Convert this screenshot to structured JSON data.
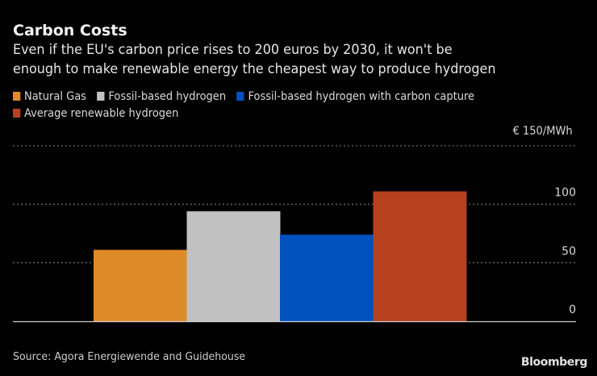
{
  "chart_data": {
    "type": "bar",
    "title": "Carbon Costs",
    "subtitle": "Even if the EU's carbon price rises to 200 euros by 2030, it won't be enough to make renewable energy the cheapest way to produce hydrogen",
    "subtitle_lines": [
      "Even if the EU's carbon price rises to 200 euros by 2030, it won't be",
      "enough to make renewable energy the cheapest way to produce hydrogen"
    ],
    "categories": [
      "Natural Gas",
      "Fossil-based hydrogen",
      "Fossil-based hydrogen with carbon capture",
      "Average renewable hydrogen"
    ],
    "values": [
      61,
      94,
      74,
      111
    ],
    "colors": [
      "#de8b27",
      "#c1c1c1",
      "#0051bd",
      "#b5411e"
    ],
    "legend": [
      {
        "label": "Natural Gas",
        "color": "#de8b27"
      },
      {
        "label": "Fossil-based hydrogen",
        "color": "#c1c1c1"
      },
      {
        "label": "Fossil-based hydrogen with carbon capture",
        "color": "#0051bd"
      },
      {
        "label": "Average renewable hydrogen",
        "color": "#b5411e"
      }
    ],
    "legend_position": "top-left",
    "ylim": [
      0,
      150
    ],
    "yticks": [
      0,
      50,
      100,
      150
    ],
    "ytick_labels": [
      "0",
      "50",
      "100",
      "€ 150/MWh"
    ],
    "yaxis_position": "right",
    "unit_label": "€ 150/MWh",
    "xlabel": "",
    "ylabel": "",
    "grid": true
  },
  "footer": {
    "source": "Source: Agora Energiewende and Guidehouse",
    "brand": "Bloomberg"
  }
}
